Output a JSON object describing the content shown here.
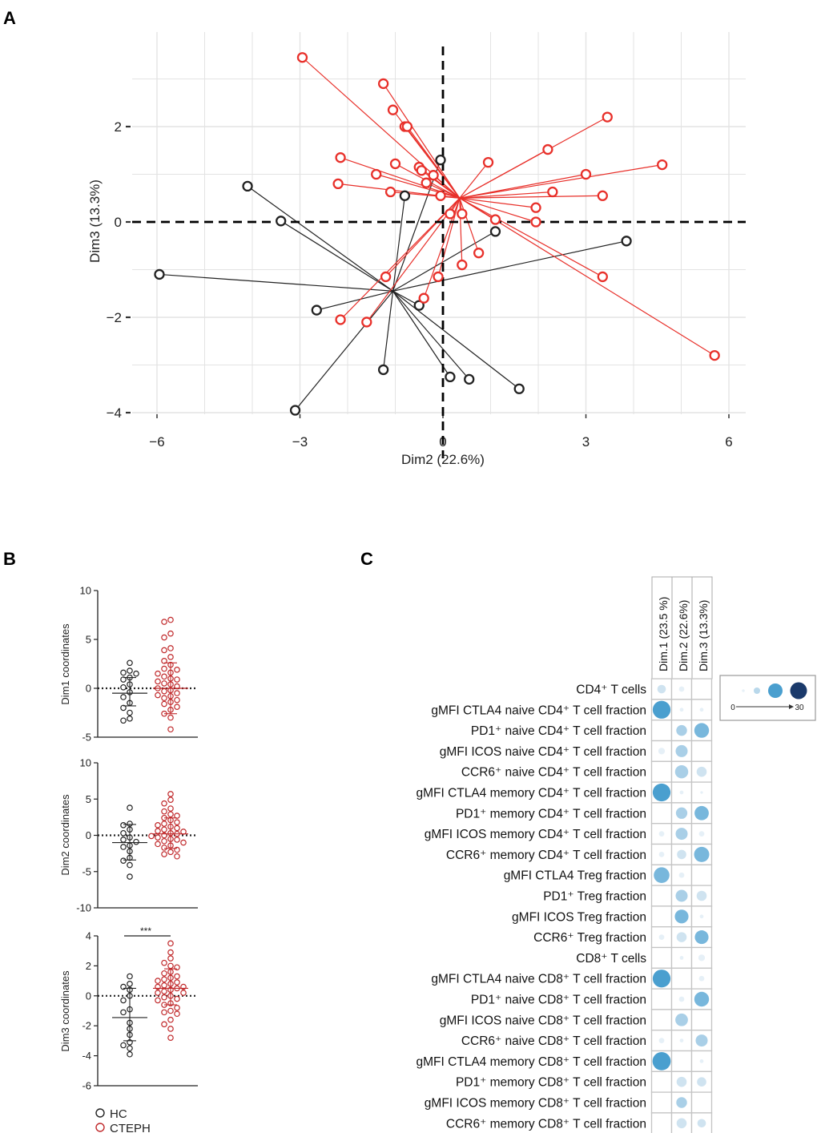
{
  "panels": {
    "a": "A",
    "b": "B",
    "c": "C"
  },
  "colors": {
    "hc": "#222222",
    "cteph": "#e8302a",
    "cteph_b": "#c0282a",
    "grid": "#e3e3e3",
    "dot_light": "#cfe3f0",
    "dot_mid": "#8ec2e0",
    "dot_strong": "#4a9fcf",
    "dot_dark": "#1b3a6b"
  },
  "chart_data": [
    {
      "id": "A",
      "type": "scatter",
      "title": "",
      "xlabel": "Dim2 (22.6%)",
      "ylabel": "Dim3 (13.3%)",
      "xlim": [
        -6.5,
        6.5
      ],
      "ylim": [
        -4.3,
        3.8
      ],
      "xticks": [
        -6,
        -3,
        0,
        3,
        6
      ],
      "xtick_labels": [
        "−6",
        "−3",
        "0",
        "3",
        "6"
      ],
      "yticks": [
        -4,
        -2,
        0,
        2
      ],
      "ytick_labels": [
        "−4",
        "−2",
        "0",
        "2"
      ],
      "series": [
        {
          "name": "HC",
          "centroid": [
            -1.05,
            -1.45
          ],
          "points": [
            [
              -0.05,
              1.3
            ],
            [
              -0.8,
              0.55
            ],
            [
              -4.1,
              0.75
            ],
            [
              -3.4,
              0.02
            ],
            [
              -5.95,
              -1.1
            ],
            [
              -2.65,
              -1.85
            ],
            [
              -0.5,
              -1.75
            ],
            [
              -1.25,
              -3.1
            ],
            [
              -3.1,
              -3.95
            ],
            [
              0.15,
              -3.25
            ],
            [
              0.55,
              -3.3
            ],
            [
              1.6,
              -3.5
            ],
            [
              1.1,
              -0.2
            ],
            [
              3.85,
              -0.4
            ]
          ]
        },
        {
          "name": "CTEPH",
          "centroid": [
            0.35,
            0.5
          ],
          "points": [
            [
              -2.95,
              3.45
            ],
            [
              -1.25,
              2.9
            ],
            [
              -1.05,
              2.35
            ],
            [
              -0.8,
              2.0
            ],
            [
              -0.75,
              2.0
            ],
            [
              -2.15,
              1.35
            ],
            [
              -1.0,
              1.22
            ],
            [
              -1.4,
              1.0
            ],
            [
              -2.2,
              0.8
            ],
            [
              -1.1,
              0.63
            ],
            [
              -0.5,
              1.15
            ],
            [
              -0.45,
              1.08
            ],
            [
              -0.2,
              0.98
            ],
            [
              -0.35,
              0.82
            ],
            [
              -0.05,
              0.55
            ],
            [
              0.95,
              1.25
            ],
            [
              2.2,
              1.52
            ],
            [
              3.45,
              2.2
            ],
            [
              3.0,
              1.0
            ],
            [
              4.6,
              1.2
            ],
            [
              2.3,
              0.63
            ],
            [
              3.35,
              0.55
            ],
            [
              1.95,
              0.3
            ],
            [
              0.15,
              0.17
            ],
            [
              0.4,
              0.17
            ],
            [
              1.1,
              0.05
            ],
            [
              1.95,
              0.0
            ],
            [
              0.75,
              -0.65
            ],
            [
              0.4,
              -0.9
            ],
            [
              -0.1,
              -1.15
            ],
            [
              -1.2,
              -1.15
            ],
            [
              -0.4,
              -1.6
            ],
            [
              -2.15,
              -2.05
            ],
            [
              -1.6,
              -2.1
            ],
            [
              3.35,
              -1.15
            ],
            [
              5.7,
              -2.8
            ]
          ]
        }
      ]
    },
    {
      "id": "B1",
      "type": "scatter",
      "ylabel": "Dim1 coordinates",
      "ylim": [
        -5,
        10
      ],
      "yticks": [
        -5,
        0,
        5,
        10
      ],
      "ytick_labels": [
        "-5",
        "0",
        "5",
        "10"
      ],
      "series": [
        {
          "name": "HC",
          "mean": -0.5,
          "sd_low": -1.8,
          "sd_high": 1.1,
          "values": [
            2.6,
            1.8,
            1.6,
            1.5,
            1.1,
            0.9,
            0.4,
            0.1,
            -0.4,
            -0.9,
            -1.5,
            -2.0,
            -2.5,
            -3.1,
            -3.3
          ]
        },
        {
          "name": "CTEPH",
          "mean": 0.0,
          "sd_low": -2.6,
          "sd_high": 2.6,
          "values": [
            7.0,
            6.8,
            5.6,
            5.2,
            4.1,
            3.9,
            3.2,
            2.8,
            2.4,
            2.0,
            1.9,
            1.6,
            1.5,
            1.2,
            1.0,
            0.9,
            0.7,
            0.5,
            0.4,
            0.2,
            0.0,
            -0.2,
            -0.3,
            -0.5,
            -0.7,
            -0.8,
            -1.0,
            -1.2,
            -1.4,
            -1.6,
            -1.9,
            -2.2,
            -2.6,
            -3.0,
            -4.2
          ]
        }
      ]
    },
    {
      "id": "B2",
      "type": "scatter",
      "ylabel": "Dim2 coordinates",
      "ylim": [
        -10,
        10
      ],
      "yticks": [
        -10,
        -5,
        0,
        5,
        10
      ],
      "ytick_labels": [
        "-10",
        "-5",
        "0",
        "5",
        "10"
      ],
      "series": [
        {
          "name": "HC",
          "mean": -1.0,
          "sd_low": -3.4,
          "sd_high": 1.5,
          "values": [
            3.8,
            1.6,
            1.4,
            0.8,
            0.3,
            -0.3,
            -0.6,
            -0.9,
            -1.4,
            -1.6,
            -2.2,
            -3.1,
            -3.5,
            -4.1,
            -5.7
          ]
        },
        {
          "name": "CTEPH",
          "mean": 0.2,
          "sd_low": -1.8,
          "sd_high": 2.4,
          "values": [
            5.7,
            4.9,
            4.4,
            3.7,
            3.3,
            2.9,
            2.7,
            2.4,
            2.1,
            1.8,
            1.6,
            1.4,
            1.2,
            1.0,
            0.8,
            0.6,
            0.5,
            0.3,
            0.2,
            0.0,
            -0.1,
            -0.3,
            -0.5,
            -0.6,
            -0.8,
            -1.0,
            -1.2,
            -1.4,
            -1.7,
            -2.0,
            -2.3,
            -2.6,
            -2.9
          ]
        }
      ]
    },
    {
      "id": "B3",
      "type": "scatter",
      "ylabel": "Dim3 coordinates",
      "ylim": [
        -6,
        4
      ],
      "yticks": [
        -6,
        -4,
        -2,
        0,
        2,
        4
      ],
      "ytick_labels": [
        "-6",
        "-4",
        "-2",
        "0",
        "2",
        "4"
      ],
      "significance": "***",
      "series": [
        {
          "name": "HC",
          "mean": -1.45,
          "sd_low": -3.0,
          "sd_high": 0.5,
          "values": [
            1.3,
            0.8,
            0.6,
            0.4,
            0.0,
            -0.3,
            -0.9,
            -1.1,
            -1.8,
            -2.2,
            -2.6,
            -3.1,
            -3.3,
            -3.5,
            -3.9
          ]
        },
        {
          "name": "CTEPH",
          "mean": 0.5,
          "sd_low": -0.6,
          "sd_high": 1.8,
          "values": [
            3.5,
            2.9,
            2.5,
            2.2,
            2.0,
            1.9,
            1.6,
            1.5,
            1.3,
            1.2,
            1.1,
            1.0,
            0.9,
            0.8,
            0.7,
            0.6,
            0.6,
            0.5,
            0.4,
            0.3,
            0.2,
            0.2,
            0.0,
            -0.1,
            -0.2,
            -0.3,
            -0.5,
            -0.6,
            -0.8,
            -1.0,
            -1.1,
            -1.2,
            -1.6,
            -1.9,
            -2.2,
            -2.8
          ]
        }
      ]
    },
    {
      "id": "C",
      "type": "heatmap",
      "columns": [
        "Dim.1 (23.5 %)",
        "Dim.2 (22.6%)",
        "Dim.3 (13.3%)"
      ],
      "legend_min": "0",
      "legend_max": "30",
      "rows": [
        {
          "label": "CD4⁺ T cells",
          "values": [
            5,
            2,
            0
          ]
        },
        {
          "label": "gMFI CTLA4 naive CD4⁺ T cell fraction",
          "values": [
            22,
            1,
            1
          ]
        },
        {
          "label": "PD1⁺ naive CD4⁺ T cell fraction",
          "values": [
            0,
            8,
            15
          ]
        },
        {
          "label": "gMFI ICOS naive CD4⁺ T cell fraction",
          "values": [
            3,
            10,
            0
          ]
        },
        {
          "label": "CCR6⁺ naive CD4⁺ T cell fraction",
          "values": [
            0,
            12,
            7
          ]
        },
        {
          "label": "gMFI CTLA4 memory CD4⁺ T cell fraction",
          "values": [
            22,
            1,
            0.5
          ]
        },
        {
          "label": "PD1⁺ memory CD4⁺ T cell fraction",
          "values": [
            0,
            9,
            14
          ]
        },
        {
          "label": "gMFI ICOS memory CD4⁺ T cell fraction",
          "values": [
            2,
            10,
            2
          ]
        },
        {
          "label": "CCR6⁺ memory CD4⁺ T cell fraction",
          "values": [
            2,
            6,
            16
          ]
        },
        {
          "label": "gMFI CTLA4 Treg fraction",
          "values": [
            17,
            2,
            0
          ]
        },
        {
          "label": "PD1⁺ Treg fraction",
          "values": [
            0,
            10,
            7
          ]
        },
        {
          "label": "gMFI ICOS Treg fraction",
          "values": [
            0,
            13,
            1
          ]
        },
        {
          "label": "CCR6⁺ Treg fraction",
          "values": [
            2,
            7,
            13
          ]
        },
        {
          "label": "CD8⁺ T cells",
          "values": [
            0,
            1,
            3
          ]
        },
        {
          "label": "gMFI CTLA4 naive CD8⁺ T cell fraction",
          "values": [
            22,
            0,
            2
          ]
        },
        {
          "label": "PD1⁺ naive CD8⁺ T cell fraction",
          "values": [
            0,
            2,
            15
          ]
        },
        {
          "label": "gMFI ICOS naive CD8⁺ T cell fraction",
          "values": [
            0,
            11,
            0
          ]
        },
        {
          "label": "CCR6⁺ naive CD8⁺ T cell fraction",
          "values": [
            2,
            1,
            10
          ]
        },
        {
          "label": "gMFI CTLA4 memory CD8⁺ T cell fraction",
          "values": [
            23,
            0,
            1
          ]
        },
        {
          "label": "PD1⁺ memory CD8⁺ T cell fraction",
          "values": [
            0,
            7,
            6
          ]
        },
        {
          "label": "gMFI ICOS memory CD8⁺ T cell fraction",
          "values": [
            0,
            8,
            0
          ]
        },
        {
          "label": "CCR6⁺ memory CD8⁺ T cell fraction",
          "values": [
            0,
            7,
            5
          ]
        }
      ]
    }
  ],
  "legend": {
    "hc": "HC",
    "cteph": "CTEPH"
  }
}
